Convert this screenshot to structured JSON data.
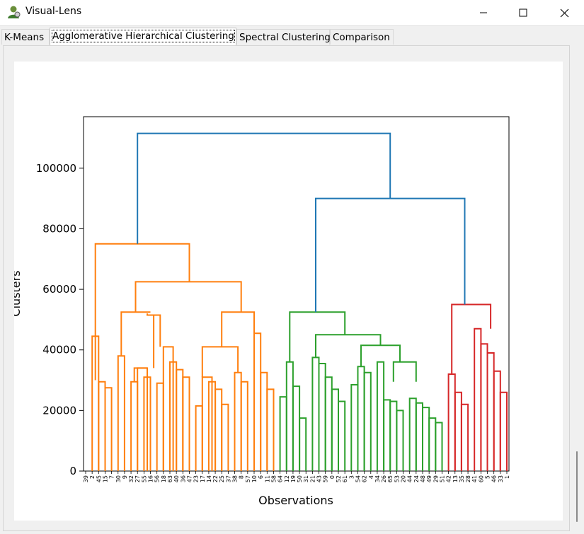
{
  "window": {
    "title": "Visual-Lens",
    "app_icon": "person-icon",
    "controls": [
      "minimize-icon",
      "maximize-icon",
      "close-icon"
    ]
  },
  "tabs": [
    {
      "label": "K-Means",
      "active": false
    },
    {
      "label": "Agglomerative Hierarchical Clustering",
      "active": true
    },
    {
      "label": "Spectral Clustering",
      "active": false
    },
    {
      "label": "Comparison",
      "active": false
    }
  ],
  "chart_data": {
    "type": "dendrogram",
    "xlabel": "Observations",
    "ylabel": "Clusters",
    "ylim": [
      0,
      117000
    ],
    "yticks": [
      0,
      20000,
      40000,
      60000,
      80000,
      100000
    ],
    "leaf_labels": [
      "39",
      "2",
      "45",
      "15",
      "7",
      "30",
      "9",
      "32",
      "27",
      "55",
      "16",
      "56",
      "18",
      "63",
      "40",
      "36",
      "47",
      "23",
      "17",
      "14",
      "22",
      "25",
      "37",
      "38",
      "8",
      "57",
      "10",
      "6",
      "11",
      "58",
      "64",
      "12",
      "19",
      "50",
      "31",
      "21",
      "43",
      "59",
      "0",
      "52",
      "61",
      "3",
      "54",
      "62",
      "4",
      "34",
      "26",
      "65",
      "53",
      "20",
      "44",
      "24",
      "48",
      "49",
      "29",
      "51",
      "42",
      "13",
      "35",
      "28",
      "41",
      "60",
      "5",
      "46",
      "33",
      "1"
    ],
    "colors": {
      "link": "#1f77b4",
      "c1": "#ff7f0e",
      "c2": "#2ca02c",
      "c3": "#d62728"
    },
    "links": [
      {
        "c": "#ff7f0e",
        "x": [
          1,
          2
        ],
        "y": [
          0,
          44500
        ]
      },
      {
        "c": "#ff7f0e",
        "x": [
          2,
          3
        ],
        "y": [
          0,
          29500
        ]
      },
      {
        "c": "#ff7f0e",
        "x": [
          3,
          4
        ],
        "y": [
          0,
          27500
        ]
      },
      {
        "c": "#ff7f0e",
        "x": [
          5,
          6
        ],
        "y": [
          0,
          38000
        ]
      },
      {
        "c": "#ff7f0e",
        "x": [
          7,
          8
        ],
        "y": [
          0,
          29500
        ]
      },
      {
        "c": "#ff7f0e",
        "x": [
          8,
          9.5
        ],
        "y": [
          0,
          34000
        ]
      },
      {
        "c": "#ff7f0e",
        "x": [
          9,
          10
        ],
        "y": [
          0,
          31000
        ]
      },
      {
        "c": "#ff7f0e",
        "x": [
          11,
          12
        ],
        "y": [
          0,
          29000
        ]
      },
      {
        "c": "#ff7f0e",
        "x": [
          12,
          13.5
        ],
        "y": [
          0,
          41000
        ]
      },
      {
        "c": "#ff7f0e",
        "x": [
          13,
          14
        ],
        "y": [
          0,
          36000
        ]
      },
      {
        "c": "#ff7f0e",
        "x": [
          14,
          15
        ],
        "y": [
          0,
          33500
        ]
      },
      {
        "c": "#ff7f0e",
        "x": [
          15,
          16
        ],
        "y": [
          0,
          31000
        ]
      },
      {
        "c": "#ff7f0e",
        "x": [
          17,
          18
        ],
        "y": [
          0,
          21500
        ]
      },
      {
        "c": "#ff7f0e",
        "x": [
          18,
          19.5
        ],
        "y": [
          0,
          31000
        ]
      },
      {
        "c": "#ff7f0e",
        "x": [
          19,
          20
        ],
        "y": [
          0,
          29500
        ]
      },
      {
        "c": "#ff7f0e",
        "x": [
          20,
          21
        ],
        "y": [
          0,
          27000
        ]
      },
      {
        "c": "#ff7f0e",
        "x": [
          21,
          22
        ],
        "y": [
          0,
          22000
        ]
      },
      {
        "c": "#ff7f0e",
        "x": [
          23,
          24
        ],
        "y": [
          0,
          32500
        ]
      },
      {
        "c": "#ff7f0e",
        "x": [
          24,
          25
        ],
        "y": [
          0,
          29500
        ]
      },
      {
        "c": "#ff7f0e",
        "x": [
          26,
          27
        ],
        "y": [
          0,
          45500
        ]
      },
      {
        "c": "#ff7f0e",
        "x": [
          27,
          28
        ],
        "y": [
          0,
          32500
        ]
      },
      {
        "c": "#ff7f0e",
        "x": [
          28,
          29
        ],
        "y": [
          0,
          27000
        ]
      },
      {
        "c": "#2ca02c",
        "x": [
          30,
          31
        ],
        "y": [
          0,
          24500
        ]
      },
      {
        "c": "#2ca02c",
        "x": [
          31,
          32
        ],
        "y": [
          0,
          36000
        ]
      },
      {
        "c": "#2ca02c",
        "x": [
          32,
          33
        ],
        "y": [
          0,
          28000
        ]
      },
      {
        "c": "#2ca02c",
        "x": [
          33,
          34
        ],
        "y": [
          0,
          17500
        ]
      },
      {
        "c": "#2ca02c",
        "x": [
          35,
          36
        ],
        "y": [
          0,
          37500
        ]
      },
      {
        "c": "#2ca02c",
        "x": [
          36,
          37
        ],
        "y": [
          0,
          35500
        ]
      },
      {
        "c": "#2ca02c",
        "x": [
          37,
          38
        ],
        "y": [
          0,
          31000
        ]
      },
      {
        "c": "#2ca02c",
        "x": [
          38,
          39
        ],
        "y": [
          0,
          27000
        ]
      },
      {
        "c": "#2ca02c",
        "x": [
          39,
          40
        ],
        "y": [
          0,
          23000
        ]
      },
      {
        "c": "#2ca02c",
        "x": [
          41,
          42
        ],
        "y": [
          0,
          28500
        ]
      },
      {
        "c": "#2ca02c",
        "x": [
          42,
          43
        ],
        "y": [
          0,
          34500
        ]
      },
      {
        "c": "#2ca02c",
        "x": [
          43,
          44
        ],
        "y": [
          0,
          32500
        ]
      },
      {
        "c": "#2ca02c",
        "x": [
          45,
          46
        ],
        "y": [
          0,
          36000
        ]
      },
      {
        "c": "#2ca02c",
        "x": [
          46,
          47
        ],
        "y": [
          0,
          23500
        ]
      },
      {
        "c": "#2ca02c",
        "x": [
          47,
          48
        ],
        "y": [
          0,
          23000
        ]
      },
      {
        "c": "#2ca02c",
        "x": [
          48,
          49
        ],
        "y": [
          0,
          20000
        ]
      },
      {
        "c": "#2ca02c",
        "x": [
          50,
          51
        ],
        "y": [
          0,
          24000
        ]
      },
      {
        "c": "#2ca02c",
        "x": [
          51,
          52
        ],
        "y": [
          0,
          22500
        ]
      },
      {
        "c": "#2ca02c",
        "x": [
          52,
          53
        ],
        "y": [
          0,
          21000
        ]
      },
      {
        "c": "#2ca02c",
        "x": [
          53,
          54
        ],
        "y": [
          0,
          17500
        ]
      },
      {
        "c": "#2ca02c",
        "x": [
          54,
          55
        ],
        "y": [
          0,
          16000
        ]
      },
      {
        "c": "#d62728",
        "x": [
          56,
          57
        ],
        "y": [
          0,
          32000
        ]
      },
      {
        "c": "#d62728",
        "x": [
          57,
          58
        ],
        "y": [
          0,
          26000
        ]
      },
      {
        "c": "#d62728",
        "x": [
          58,
          59
        ],
        "y": [
          0,
          22000
        ]
      },
      {
        "c": "#d62728",
        "x": [
          60,
          61
        ],
        "y": [
          0,
          47000
        ]
      },
      {
        "c": "#d62728",
        "x": [
          61,
          62
        ],
        "y": [
          0,
          42000
        ]
      },
      {
        "c": "#d62728",
        "x": [
          62,
          63
        ],
        "y": [
          0,
          39000
        ]
      },
      {
        "c": "#d62728",
        "x": [
          63,
          64
        ],
        "y": [
          0,
          33000
        ]
      },
      {
        "c": "#d62728",
        "x": [
          64,
          65
        ],
        "y": [
          0,
          26000
        ]
      }
    ]
  }
}
